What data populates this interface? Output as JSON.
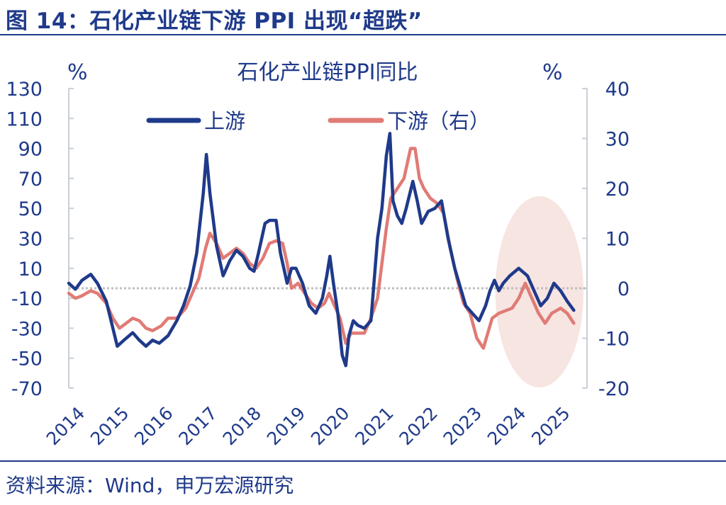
{
  "figure": {
    "title": "图 14：石化产业链下游 PPI 出现“超跌”",
    "source": "资料来源：Wind，申万宏源研究"
  },
  "chart_data": {
    "type": "line",
    "title": "石化产业链PPI同比",
    "ylabel": "%",
    "y2label": "%",
    "ylim": [
      -70,
      130
    ],
    "y2lim": [
      -20,
      40
    ],
    "yticks": [
      130,
      110,
      90,
      70,
      50,
      30,
      10,
      -10,
      -30,
      -50,
      -70
    ],
    "y2ticks": [
      40,
      30,
      20,
      10,
      0,
      -10,
      -20
    ],
    "xlim": [
      2014.0,
      2025.75
    ],
    "xticks": [
      "2014",
      "2015",
      "2016",
      "2017",
      "2018",
      "2019",
      "2020",
      "2021",
      "2022",
      "2023",
      "2024",
      "2025"
    ],
    "legend": "top",
    "reference_line": 0,
    "highlight_region": {
      "x": [
        2023.67,
        2025.67
      ],
      "description": "shaded ellipse"
    },
    "colors": {
      "upstream": "#1f3a8a",
      "downstream": "#e07b75",
      "axis": "#1f3a8a",
      "highlight": "#f4dcd8"
    },
    "series": [
      {
        "name": "上游",
        "axis": "left",
        "points": [
          [
            2014.0,
            0
          ],
          [
            2014.15,
            -4
          ],
          [
            2014.3,
            2
          ],
          [
            2014.5,
            6
          ],
          [
            2014.65,
            0
          ],
          [
            2014.85,
            -12
          ],
          [
            2015.0,
            -30
          ],
          [
            2015.1,
            -42
          ],
          [
            2015.25,
            -38
          ],
          [
            2015.45,
            -33
          ],
          [
            2015.6,
            -38
          ],
          [
            2015.75,
            -42
          ],
          [
            2015.9,
            -38
          ],
          [
            2016.05,
            -40
          ],
          [
            2016.25,
            -35
          ],
          [
            2016.45,
            -25
          ],
          [
            2016.6,
            -15
          ],
          [
            2016.75,
            -2
          ],
          [
            2016.9,
            20
          ],
          [
            2017.05,
            60
          ],
          [
            2017.12,
            86
          ],
          [
            2017.2,
            60
          ],
          [
            2017.35,
            25
          ],
          [
            2017.5,
            5
          ],
          [
            2017.65,
            15
          ],
          [
            2017.8,
            22
          ],
          [
            2017.95,
            18
          ],
          [
            2018.1,
            10
          ],
          [
            2018.2,
            8
          ],
          [
            2018.3,
            20
          ],
          [
            2018.45,
            40
          ],
          [
            2018.55,
            42
          ],
          [
            2018.7,
            42
          ],
          [
            2018.8,
            20
          ],
          [
            2018.95,
            0
          ],
          [
            2019.05,
            10
          ],
          [
            2019.15,
            10
          ],
          [
            2019.3,
            0
          ],
          [
            2019.45,
            -15
          ],
          [
            2019.6,
            -20
          ],
          [
            2019.75,
            -10
          ],
          [
            2019.85,
            5
          ],
          [
            2019.92,
            18
          ],
          [
            2020.0,
            0
          ],
          [
            2020.1,
            -20
          ],
          [
            2020.2,
            -48
          ],
          [
            2020.28,
            -55
          ],
          [
            2020.35,
            -35
          ],
          [
            2020.45,
            -25
          ],
          [
            2020.55,
            -28
          ],
          [
            2020.7,
            -30
          ],
          [
            2020.85,
            -25
          ],
          [
            2021.0,
            30
          ],
          [
            2021.1,
            50
          ],
          [
            2021.2,
            85
          ],
          [
            2021.28,
            100
          ],
          [
            2021.35,
            55
          ],
          [
            2021.45,
            45
          ],
          [
            2021.55,
            40
          ],
          [
            2021.65,
            50
          ],
          [
            2021.8,
            68
          ],
          [
            2021.9,
            55
          ],
          [
            2022.0,
            40
          ],
          [
            2022.15,
            48
          ],
          [
            2022.3,
            50
          ],
          [
            2022.45,
            55
          ],
          [
            2022.6,
            30
          ],
          [
            2022.75,
            10
          ],
          [
            2022.9,
            -5
          ],
          [
            2023.0,
            -15
          ],
          [
            2023.15,
            -20
          ],
          [
            2023.3,
            -25
          ],
          [
            2023.45,
            -15
          ],
          [
            2023.55,
            -5
          ],
          [
            2023.65,
            2
          ],
          [
            2023.75,
            -5
          ],
          [
            2023.85,
            0
          ],
          [
            2024.0,
            5
          ],
          [
            2024.2,
            10
          ],
          [
            2024.4,
            5
          ],
          [
            2024.55,
            -5
          ],
          [
            2024.7,
            -15
          ],
          [
            2024.85,
            -10
          ],
          [
            2025.0,
            0
          ],
          [
            2025.15,
            -5
          ],
          [
            2025.3,
            -12
          ],
          [
            2025.45,
            -18
          ]
        ]
      },
      {
        "name": "下游（右）",
        "axis": "right",
        "points": [
          [
            2014.0,
            -1
          ],
          [
            2014.15,
            -2
          ],
          [
            2014.3,
            -1.5
          ],
          [
            2014.5,
            -0.5
          ],
          [
            2014.65,
            -1
          ],
          [
            2014.85,
            -3
          ],
          [
            2015.0,
            -6
          ],
          [
            2015.15,
            -8
          ],
          [
            2015.3,
            -7
          ],
          [
            2015.45,
            -6
          ],
          [
            2015.6,
            -6.5
          ],
          [
            2015.75,
            -8
          ],
          [
            2015.9,
            -8.5
          ],
          [
            2016.1,
            -7.5
          ],
          [
            2016.25,
            -6
          ],
          [
            2016.45,
            -6
          ],
          [
            2016.65,
            -4
          ],
          [
            2016.8,
            -1
          ],
          [
            2016.95,
            2
          ],
          [
            2017.1,
            8
          ],
          [
            2017.2,
            11
          ],
          [
            2017.35,
            9
          ],
          [
            2017.5,
            6
          ],
          [
            2017.65,
            7
          ],
          [
            2017.8,
            8
          ],
          [
            2017.95,
            7
          ],
          [
            2018.1,
            5
          ],
          [
            2018.25,
            4
          ],
          [
            2018.4,
            6
          ],
          [
            2018.55,
            9
          ],
          [
            2018.7,
            9.5
          ],
          [
            2018.85,
            9
          ],
          [
            2018.95,
            5
          ],
          [
            2019.05,
            0
          ],
          [
            2019.2,
            1
          ],
          [
            2019.35,
            -1
          ],
          [
            2019.5,
            -3
          ],
          [
            2019.65,
            -4
          ],
          [
            2019.8,
            -3
          ],
          [
            2019.9,
            -1
          ],
          [
            2020.0,
            -3
          ],
          [
            2020.15,
            -6
          ],
          [
            2020.28,
            -11
          ],
          [
            2020.4,
            -9
          ],
          [
            2020.55,
            -9
          ],
          [
            2020.7,
            -9
          ],
          [
            2020.85,
            -6
          ],
          [
            2021.0,
            -2
          ],
          [
            2021.1,
            5
          ],
          [
            2021.2,
            12
          ],
          [
            2021.3,
            18
          ],
          [
            2021.45,
            20
          ],
          [
            2021.6,
            22
          ],
          [
            2021.75,
            28
          ],
          [
            2021.85,
            28
          ],
          [
            2021.95,
            22
          ],
          [
            2022.05,
            20
          ],
          [
            2022.2,
            18
          ],
          [
            2022.35,
            17
          ],
          [
            2022.5,
            15
          ],
          [
            2022.65,
            8
          ],
          [
            2022.8,
            2
          ],
          [
            2022.95,
            -3
          ],
          [
            2023.1,
            -5
          ],
          [
            2023.25,
            -10
          ],
          [
            2023.4,
            -12
          ],
          [
            2023.5,
            -9
          ],
          [
            2023.6,
            -6
          ],
          [
            2023.75,
            -5
          ],
          [
            2023.9,
            -4.5
          ],
          [
            2024.05,
            -4
          ],
          [
            2024.2,
            -2
          ],
          [
            2024.35,
            1
          ],
          [
            2024.5,
            -2
          ],
          [
            2024.65,
            -5
          ],
          [
            2024.8,
            -7
          ],
          [
            2024.95,
            -5
          ],
          [
            2025.15,
            -4
          ],
          [
            2025.3,
            -5
          ],
          [
            2025.45,
            -7
          ]
        ]
      }
    ]
  }
}
